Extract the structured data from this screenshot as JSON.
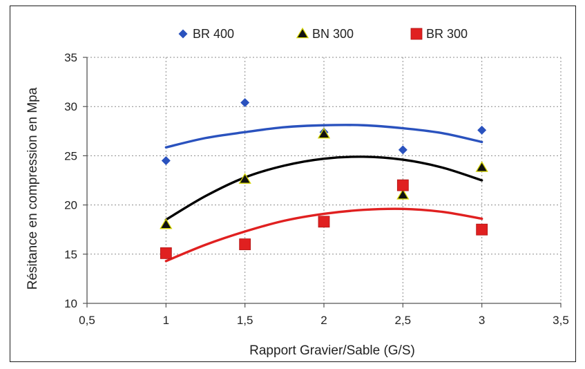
{
  "chart_data": {
    "type": "scatter",
    "title": "",
    "xlabel": "Rapport Gravier/Sable (G/S)",
    "ylabel": "Résitance en compression en Mpa",
    "xlim": [
      0.5,
      3.5
    ],
    "ylim": [
      10,
      35
    ],
    "xticks": [
      0.5,
      1,
      1.5,
      2,
      2.5,
      3,
      3.5
    ],
    "xtick_labels": [
      "0,5",
      "1",
      "1,5",
      "2",
      "2,5",
      "3",
      "3,5"
    ],
    "yticks": [
      10,
      15,
      20,
      25,
      30,
      35
    ],
    "ytick_labels": [
      "10",
      "15",
      "20",
      "25",
      "30",
      "35"
    ],
    "grid": "vertical dashed gridlines at x ticks, horizontal dashed gridlines at y ticks",
    "legend_position": "top",
    "series": [
      {
        "name": "BR 400",
        "marker": "diamond",
        "color": "#2a52be",
        "x": [
          1,
          1.5,
          2,
          2.5,
          3
        ],
        "y": [
          24.5,
          30.4,
          27.4,
          25.6,
          27.6
        ],
        "trend_x": [
          1,
          1.25,
          1.5,
          1.75,
          2,
          2.25,
          2.5,
          2.75,
          3
        ],
        "trend_y": [
          25.85,
          26.8,
          27.4,
          27.9,
          28.1,
          28.1,
          27.8,
          27.3,
          26.4
        ]
      },
      {
        "name": "BN 300",
        "marker": "triangle",
        "color": "#111111",
        "fill": "#d4d400",
        "x": [
          1,
          1.5,
          2,
          2.5,
          3
        ],
        "y": [
          18.0,
          22.6,
          27.2,
          21.0,
          23.8
        ],
        "trend_x": [
          1,
          1.25,
          1.5,
          1.75,
          2,
          2.25,
          2.5,
          2.75,
          3
        ],
        "trend_y": [
          18.5,
          20.9,
          22.8,
          24.0,
          24.7,
          24.9,
          24.6,
          23.8,
          22.5
        ]
      },
      {
        "name": "BR 300",
        "marker": "square",
        "color": "#e02020",
        "x": [
          1,
          1.5,
          2,
          2.5,
          3
        ],
        "y": [
          15.1,
          16.0,
          18.3,
          22.0,
          17.5
        ],
        "trend_x": [
          1,
          1.25,
          1.5,
          1.75,
          2,
          2.25,
          2.5,
          2.75,
          3
        ],
        "trend_y": [
          14.3,
          15.95,
          17.3,
          18.4,
          19.1,
          19.5,
          19.6,
          19.3,
          18.6
        ]
      }
    ]
  },
  "colors": {
    "axis": "#555555",
    "grid": "#8a8a8a",
    "blue_line": "#2a52be",
    "black_line": "#000000",
    "red_line": "#e02020"
  }
}
